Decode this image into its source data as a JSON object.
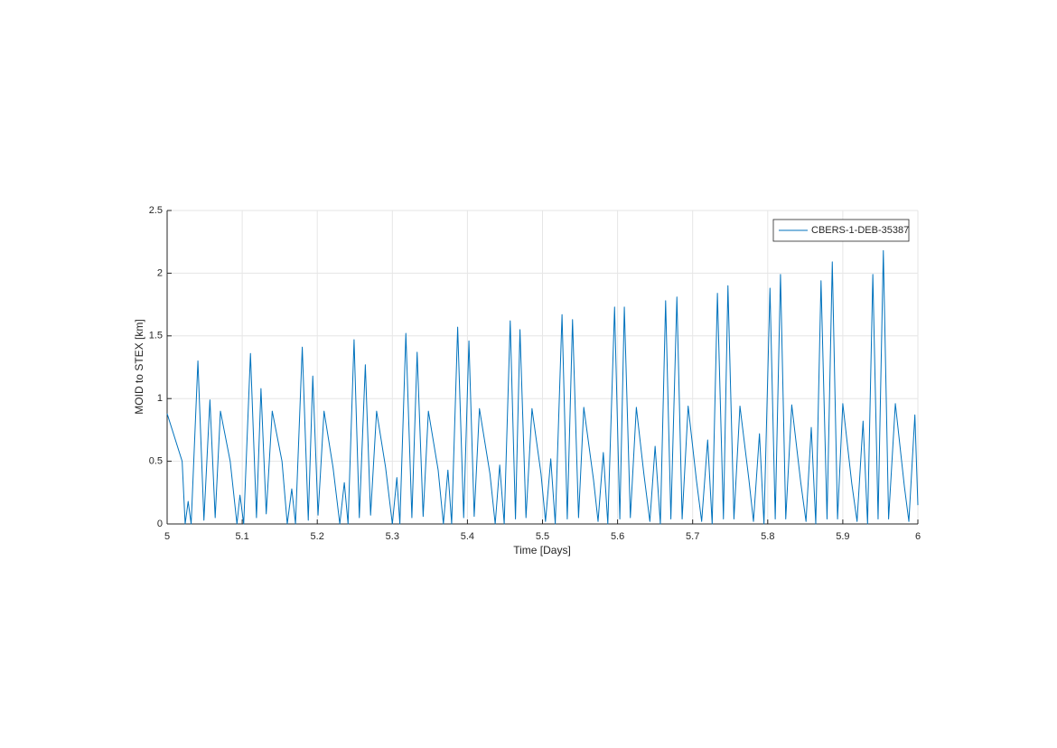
{
  "chart_data": {
    "type": "line",
    "xlabel": "Time [Days]",
    "ylabel": "MOID to STEX [km]",
    "xlim": [
      5,
      6
    ],
    "ylim": [
      0,
      2.5
    ],
    "xticks": [
      5,
      5.1,
      5.2,
      5.3,
      5.4,
      5.5,
      5.6,
      5.7,
      5.8,
      5.9,
      6
    ],
    "yticks": [
      0,
      0.5,
      1,
      1.5,
      2,
      2.5
    ],
    "grid": true,
    "legend": "upper right",
    "x": [
      5.0,
      5.02,
      5.024,
      5.028,
      5.032,
      5.041,
      5.049,
      5.057,
      5.064,
      5.071,
      5.084,
      5.093,
      5.097,
      5.102,
      5.111,
      5.119,
      5.125,
      5.132,
      5.14,
      5.153,
      5.16,
      5.166,
      5.171,
      5.18,
      5.188,
      5.194,
      5.201,
      5.209,
      5.221,
      5.23,
      5.236,
      5.241,
      5.249,
      5.256,
      5.264,
      5.271,
      5.279,
      5.291,
      5.3,
      5.306,
      5.31,
      5.318,
      5.326,
      5.333,
      5.341,
      5.348,
      5.361,
      5.368,
      5.374,
      5.379,
      5.387,
      5.395,
      5.402,
      5.409,
      5.416,
      5.43,
      5.437,
      5.443,
      5.449,
      5.457,
      5.464,
      5.47,
      5.478,
      5.486,
      5.498,
      5.504,
      5.511,
      5.517,
      5.526,
      5.533,
      5.54,
      5.548,
      5.555,
      5.568,
      5.574,
      5.581,
      5.587,
      5.596,
      5.603,
      5.609,
      5.617,
      5.625,
      5.635,
      5.643,
      5.65,
      5.657,
      5.664,
      5.671,
      5.679,
      5.686,
      5.694,
      5.705,
      5.712,
      5.72,
      5.726,
      5.733,
      5.741,
      5.747,
      5.755,
      5.763,
      5.775,
      5.781,
      5.789,
      5.795,
      5.803,
      5.81,
      5.817,
      5.824,
      5.832,
      5.844,
      5.851,
      5.858,
      5.864,
      5.871,
      5.879,
      5.886,
      5.893,
      5.9,
      5.912,
      5.919,
      5.927,
      5.933,
      5.94,
      5.947,
      5.954,
      5.961,
      5.97,
      5.982,
      5.988,
      5.996,
      6.0
    ],
    "series": [
      {
        "name": "CBERS-1-DEB-35387",
        "color": "#0072bd",
        "values": [
          0.88,
          0.5,
          0,
          0.18,
          0,
          1.3,
          0.03,
          0.99,
          0.05,
          0.9,
          0.5,
          0,
          0.23,
          0,
          1.36,
          0.05,
          1.08,
          0.08,
          0.9,
          0.5,
          0,
          0.28,
          0,
          1.41,
          0.03,
          1.18,
          0.07,
          0.9,
          0.45,
          0,
          0.33,
          0,
          1.47,
          0.05,
          1.27,
          0.07,
          0.9,
          0.45,
          0,
          0.37,
          0,
          1.52,
          0.05,
          1.37,
          0.06,
          0.9,
          0.43,
          0,
          0.43,
          0,
          1.57,
          0.05,
          1.46,
          0.06,
          0.92,
          0.4,
          0,
          0.47,
          0,
          1.62,
          0.04,
          1.55,
          0.05,
          0.92,
          0.4,
          0.02,
          0.52,
          0,
          1.67,
          0.04,
          1.63,
          0.05,
          0.93,
          0.35,
          0.02,
          0.57,
          0,
          1.73,
          0.04,
          1.73,
          0.05,
          0.93,
          0.4,
          0.02,
          0.62,
          0,
          1.78,
          0.04,
          1.81,
          0.04,
          0.94,
          0.35,
          0.02,
          0.67,
          0,
          1.84,
          0.04,
          1.9,
          0.04,
          0.94,
          0.35,
          0.02,
          0.72,
          0,
          1.88,
          0.04,
          1.99,
          0.04,
          0.95,
          0.33,
          0.02,
          0.77,
          0,
          1.94,
          0.04,
          2.09,
          0.04,
          0.96,
          0.32,
          0.02,
          0.82,
          0,
          1.99,
          0.04,
          2.18,
          0.04,
          0.96,
          0.3,
          0.02,
          0.87,
          0.15
        ]
      }
    ]
  }
}
